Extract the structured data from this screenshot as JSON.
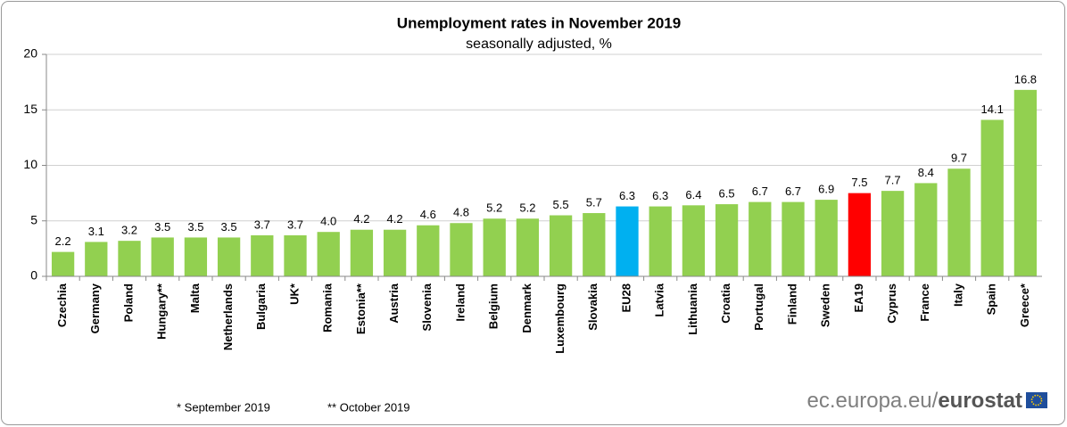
{
  "chart_data": {
    "type": "bar",
    "title": "Unemployment rates in November 2019",
    "subtitle": "seasonally adjusted, %",
    "categories": [
      "Czechia",
      "Germany",
      "Poland",
      "Hungary**",
      "Malta",
      "Netherlands",
      "Bulgaria",
      "UK*",
      "Romania",
      "Estonia**",
      "Austria",
      "Slovenia",
      "Ireland",
      "Belgium",
      "Denmark",
      "Luxembourg",
      "Slovakia",
      "EU28",
      "Latvia",
      "Lithuania",
      "Croatia",
      "Portugal",
      "Finland",
      "Sweden",
      "EA19",
      "Cyprus",
      "France",
      "Italy",
      "Spain",
      "Greece*"
    ],
    "values": [
      2.2,
      3.1,
      3.2,
      3.5,
      3.5,
      3.5,
      3.7,
      3.7,
      4.0,
      4.2,
      4.2,
      4.6,
      4.8,
      5.2,
      5.2,
      5.5,
      5.7,
      6.3,
      6.3,
      6.4,
      6.5,
      6.7,
      6.7,
      6.9,
      7.5,
      7.7,
      8.4,
      9.7,
      14.1,
      16.8
    ],
    "value_labels": [
      "2.2",
      "3.1",
      "3.2",
      "3.5",
      "3.5",
      "3.5",
      "3.7",
      "3.7",
      "4.0",
      "4.2",
      "4.2",
      "4.6",
      "4.8",
      "5.2",
      "5.2",
      "5.5",
      "5.7",
      "6.3",
      "6.3",
      "6.4",
      "6.5",
      "6.7",
      "6.7",
      "6.9",
      "7.5",
      "7.7",
      "8.4",
      "9.7",
      "14.1",
      "16.8"
    ],
    "colors": [
      "#92d050",
      "#92d050",
      "#92d050",
      "#92d050",
      "#92d050",
      "#92d050",
      "#92d050",
      "#92d050",
      "#92d050",
      "#92d050",
      "#92d050",
      "#92d050",
      "#92d050",
      "#92d050",
      "#92d050",
      "#92d050",
      "#92d050",
      "#00b0f0",
      "#92d050",
      "#92d050",
      "#92d050",
      "#92d050",
      "#92d050",
      "#92d050",
      "#ff0000",
      "#92d050",
      "#92d050",
      "#92d050",
      "#92d050",
      "#92d050"
    ],
    "ylim": [
      0,
      20
    ],
    "yticks": [
      0,
      5,
      10,
      15,
      20
    ],
    "grid": true,
    "notes": [
      "* September 2019",
      "** October 2019"
    ],
    "source_site": "ec.europa.eu/",
    "source_brand": "eurostat"
  }
}
